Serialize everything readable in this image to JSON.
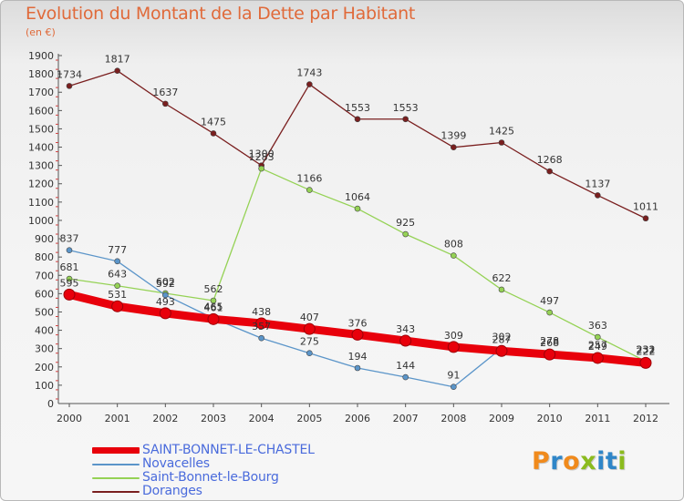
{
  "header": {
    "title": "Evolution du Montant de la Dette par Habitant",
    "subtitle": "(en €)"
  },
  "chart_data": {
    "type": "line",
    "title": "Evolution du Montant de la Dette par Habitant",
    "subtitle": "(en €)",
    "xlabel": "",
    "ylabel": "",
    "x": [
      "2000",
      "2001",
      "2002",
      "2003",
      "2004",
      "2005",
      "2006",
      "2007",
      "2008",
      "2009",
      "2010",
      "2011",
      "2012"
    ],
    "ylim": [
      0,
      1900
    ],
    "yticks": [
      0,
      100,
      200,
      300,
      400,
      500,
      600,
      700,
      800,
      900,
      1000,
      1100,
      1200,
      1300,
      1400,
      1500,
      1600,
      1700,
      1800,
      1900
    ],
    "grid": false,
    "legend_position": "bottom-left",
    "series": [
      {
        "name": "SAINT-BONNET-LE-CHASTEL",
        "color": "#e8000b",
        "values": [
          595,
          531,
          493,
          461,
          438,
          407,
          376,
          343,
          309,
          287,
          268,
          249,
          222
        ]
      },
      {
        "name": "Novacelles",
        "color": "#5b95c9",
        "values": [
          837,
          777,
          592,
          465,
          357,
          275,
          194,
          144,
          91,
          302,
          278,
          257,
          232
        ]
      },
      {
        "name": "Saint-Bonnet-le-Bourg",
        "color": "#95d255",
        "values": [
          681,
          643,
          602,
          562,
          1283,
          1166,
          1064,
          925,
          808,
          622,
          497,
          363,
          231
        ]
      },
      {
        "name": "Doranges",
        "color": "#7a1f1f",
        "values": [
          1734,
          1817,
          1637,
          1475,
          1300,
          1743,
          1553,
          1553,
          1399,
          1425,
          1268,
          1137,
          1011
        ]
      }
    ]
  },
  "logo": {
    "letters": [
      "P",
      "r",
      "o",
      "x",
      "i",
      "t",
      "i"
    ],
    "colors": [
      "#f08a1c",
      "#2f86c8",
      "#f08a1c",
      "#8bbb1e",
      "#2f86c8",
      "#2f86c8",
      "#8bbb1e"
    ]
  }
}
